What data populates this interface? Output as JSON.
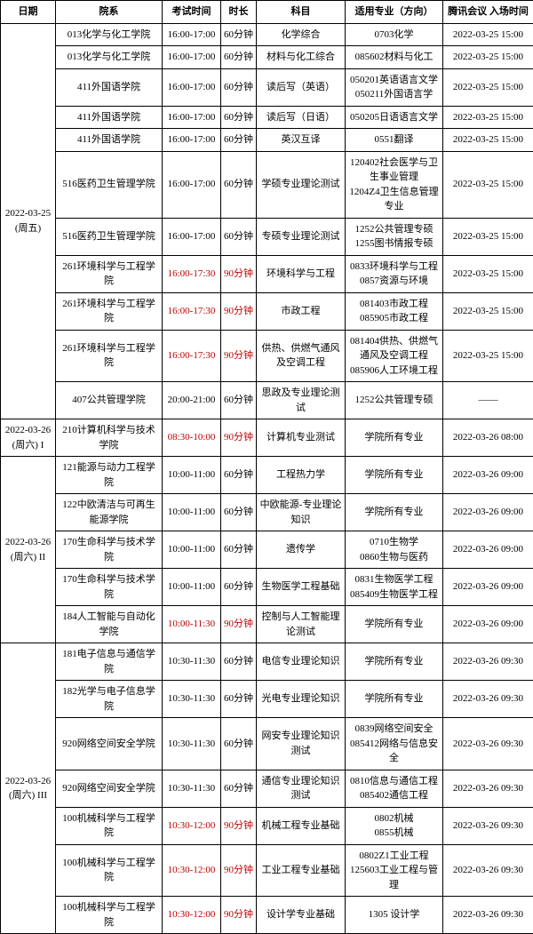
{
  "headers": {
    "date": "日期",
    "dept": "院系",
    "exam_time": "考试时间",
    "duration": "时长",
    "subject": "科目",
    "major": "适用专业（方向）",
    "meeting": "腾讯会议\n入场时间"
  },
  "groups": [
    {
      "date_label": "2022-03-25\n(周五)",
      "rows": [
        {
          "dept": "013化学与化工学院",
          "exam_time": "16:00-17:00",
          "duration": "60分钟",
          "subject": "化学综合",
          "major": "0703化学",
          "meeting": "2022-03-25 15:00",
          "highlight": false
        },
        {
          "dept": "013化学与化工学院",
          "exam_time": "16:00-17:00",
          "duration": "60分钟",
          "subject": "材料与化工综合",
          "major": "085602材料与化工",
          "meeting": "2022-03-25 15:00",
          "highlight": false
        },
        {
          "dept": "411外国语学院",
          "exam_time": "16:00-17:00",
          "duration": "60分钟",
          "subject": "读后写（英语）",
          "major": "050201英语语言文学\n050211外国语言学",
          "meeting": "2022-03-25 15:00",
          "highlight": false
        },
        {
          "dept": "411外国语学院",
          "exam_time": "16:00-17:00",
          "duration": "60分钟",
          "subject": "读后写（日语）",
          "major": "050205日语语言文学",
          "meeting": "2022-03-25 15:00",
          "highlight": false
        },
        {
          "dept": "411外国语学院",
          "exam_time": "16:00-17:00",
          "duration": "60分钟",
          "subject": "英汉互译",
          "major": "0551翻译",
          "meeting": "2022-03-25 15:00",
          "highlight": false
        },
        {
          "dept": "516医药卫生管理学院",
          "exam_time": "16:00-17:00",
          "duration": "60分钟",
          "subject": "学硕专业理论测试",
          "major": "120402社会医学与卫生事业管理\n1204Z4卫生信息管理专业",
          "meeting": "2022-03-25 15:00",
          "highlight": false
        },
        {
          "dept": "516医药卫生管理学院",
          "exam_time": "16:00-17:00",
          "duration": "60分钟",
          "subject": "专硕专业理论测试",
          "major": "1252公共管理专硕\n1255图书情报专硕",
          "meeting": "2022-03-25 15:00",
          "highlight": false
        },
        {
          "dept": "261环境科学与工程学院",
          "exam_time": "16:00-17:30",
          "duration": "90分钟",
          "subject": "环境科学与工程",
          "major": "0833环境科学与工程\n0857资源与环境",
          "meeting": "2022-03-25 15:00",
          "highlight": true
        },
        {
          "dept": "261环境科学与工程学院",
          "exam_time": "16:00-17:30",
          "duration": "90分钟",
          "subject": "市政工程",
          "major": "081403市政工程\n085905市政工程",
          "meeting": "2022-03-25 15:00",
          "highlight": true
        },
        {
          "dept": "261环境科学与工程学院",
          "exam_time": "16:00-17:30",
          "duration": "90分钟",
          "subject": "供热、供燃气通风及空调工程",
          "major": "081404供热、供燃气通风及空调工程\n085906人工环境工程",
          "meeting": "2022-03-25 15:00",
          "highlight": true
        },
        {
          "dept": "407公共管理学院",
          "exam_time": "20:00-21:00",
          "duration": "60分钟",
          "subject": "思政及专业理论测试",
          "major": "1252公共管理专硕",
          "meeting": "——",
          "highlight": false
        }
      ]
    },
    {
      "date_label": "2022-03-26\n(周六) I",
      "rows": [
        {
          "dept": "210计算机科学与技术学院",
          "exam_time": "08:30-10:00",
          "duration": "90分钟",
          "subject": "计算机专业测试",
          "major": "学院所有专业",
          "meeting": "2022-03-26 08:00",
          "highlight": true
        }
      ]
    },
    {
      "date_label": "2022-03-26\n(周六) II",
      "rows": [
        {
          "dept": "121能源与动力工程学院",
          "exam_time": "10:00-11:00",
          "duration": "60分钟",
          "subject": "工程热力学",
          "major": "学院所有专业",
          "meeting": "2022-03-26 09:00",
          "highlight": false
        },
        {
          "dept": "122中欧清洁与可再生能源学院",
          "exam_time": "10:00-11:00",
          "duration": "60分钟",
          "subject": "中欧能源-专业理论知识",
          "major": "学院所有专业",
          "meeting": "2022-03-26 09:00",
          "highlight": false
        },
        {
          "dept": "170生命科学与技术学院",
          "exam_time": "10:00-11:00",
          "duration": "60分钟",
          "subject": "遗传学",
          "major": "0710生物学\n0860生物与医药",
          "meeting": "2022-03-26 09:00",
          "highlight": false
        },
        {
          "dept": "170生命科学与技术学院",
          "exam_time": "10:00-11:00",
          "duration": "60分钟",
          "subject": "生物医学工程基础",
          "major": "0831生物医学工程\n085409生物医学工程",
          "meeting": "2022-03-26 09:00",
          "highlight": false
        },
        {
          "dept": "184人工智能与自动化学院",
          "exam_time": "10:00-11:30",
          "duration": "90分钟",
          "subject": "控制与人工智能理论测试",
          "major": "学院所有专业",
          "meeting": "2022-03-26 09:00",
          "highlight": true
        }
      ]
    },
    {
      "date_label": "2022-03-26\n(周六) III",
      "rows": [
        {
          "dept": "181电子信息与通信学院",
          "exam_time": "10:30-11:30",
          "duration": "60分钟",
          "subject": "电信专业理论知识",
          "major": "学院所有专业",
          "meeting": "2022-03-26 09:30",
          "highlight": false
        },
        {
          "dept": "182光学与电子信息学院",
          "exam_time": "10:30-11:30",
          "duration": "60分钟",
          "subject": "光电专业理论知识",
          "major": "学院所有专业",
          "meeting": "2022-03-26 09:30",
          "highlight": false
        },
        {
          "dept": "920网络空间安全学院",
          "exam_time": "10:30-11:30",
          "duration": "60分钟",
          "subject": "网安专业理论知识测试",
          "major": "0839网络空间安全\n085412网络与信息安全",
          "meeting": "2022-03-26 09:30",
          "highlight": false
        },
        {
          "dept": "920网络空间安全学院",
          "exam_time": "10:30-11:30",
          "duration": "60分钟",
          "subject": "通信专业理论知识测试",
          "major": "0810信息与通信工程\n085402通信工程",
          "meeting": "2022-03-26 09:30",
          "highlight": false
        },
        {
          "dept": "100机械科学与工程学院",
          "exam_time": "10:30-12:00",
          "duration": "90分钟",
          "subject": "机械工程专业基础",
          "major": "0802机械\n0855机械",
          "meeting": "2022-03-26 09:30",
          "highlight": true
        },
        {
          "dept": "100机械科学与工程学院",
          "exam_time": "10:30-12:00",
          "duration": "90分钟",
          "subject": "工业工程专业基础",
          "major": "0802Z1工业工程\n125603工业工程与管理",
          "meeting": "2022-03-26 09:30",
          "highlight": true
        },
        {
          "dept": "100机械科学与工程学院",
          "exam_time": "10:30-12:00",
          "duration": "90分钟",
          "subject": "设计学专业基础",
          "major": "1305 设计学",
          "meeting": "2022-03-26 09:30",
          "highlight": true
        }
      ]
    }
  ]
}
